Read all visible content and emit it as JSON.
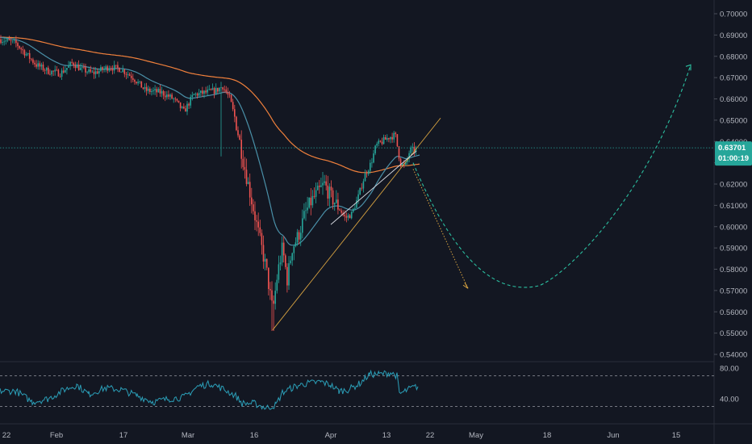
{
  "colors": {
    "background": "#131722",
    "candle_up": "#26a69a",
    "candle_down": "#ef5350",
    "ma_fast": "#4a90a8",
    "ma_slow": "#f0803c",
    "trendline": "#d9a441",
    "projection_down": "#d9a441",
    "projection_curve": "#2bbfa0",
    "current_price_line": "#26a69a",
    "rsi_line": "#2b9fb8",
    "rsi_level": "#9598a1",
    "axis_text": "#b2b5be",
    "badge": "#26a69a"
  },
  "price_axis": {
    "labels": [
      "0.70000",
      "0.69000",
      "0.68000",
      "0.67000",
      "0.66000",
      "0.65000",
      "0.64000",
      "0.63000",
      "0.62000",
      "0.61000",
      "0.60000",
      "0.59000",
      "0.58000",
      "0.57000",
      "0.56000",
      "0.55000",
      "0.54000"
    ]
  },
  "current_price": {
    "value": "0.63701",
    "countdown": "01:00:19"
  },
  "rsi_axis": {
    "labels": [
      "80.00",
      "40.00"
    ]
  },
  "time_axis": {
    "labels": [
      "22",
      "Feb",
      "17",
      "Mar",
      "16",
      "Apr",
      "13",
      "22",
      "May",
      "18",
      "Jun",
      "15"
    ]
  },
  "chart_data": {
    "type": "candlestick",
    "symbol_interval": "",
    "ylim": [
      0.537,
      0.705
    ],
    "current_price": 0.63701,
    "key_prices": {
      "start": 0.688,
      "early_feb_low": 0.672,
      "late_feb_bounce": 0.665,
      "early_mar_spike_high": 0.668,
      "early_mar_spike_low": 0.633,
      "march_low": 0.551,
      "april_high": 0.645,
      "projection_down_target": 0.571,
      "projection_curve_low": 0.572,
      "projection_curve_end": 0.676
    },
    "moving_averages": [
      {
        "values_at_start": 0.689,
        "values_at_mar_low": 0.651,
        "values_at_end": 0.627
      },
      {
        "values_at_start": 0.687,
        "values_at_mar_low": 0.603,
        "values_at_end": 0.63
      }
    ],
    "rsi": {
      "levels": [
        70,
        30
      ],
      "labels_shown": [
        80,
        40
      ],
      "last_value": 56
    }
  }
}
